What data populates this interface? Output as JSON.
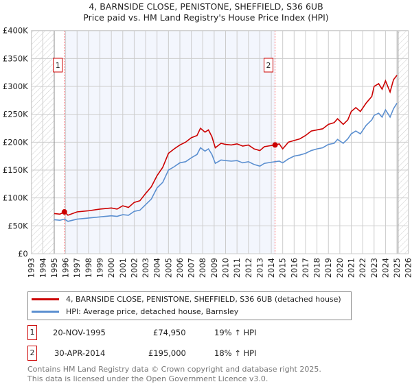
{
  "title_line1": "4, BARNSIDE CLOSE, PENISTONE, SHEFFIELD, S36 6UB",
  "title_line2": "Price paid vs. HM Land Registry's House Price Index (HPI)",
  "chart_data": {
    "type": "line",
    "xlim": [
      1993,
      2026
    ],
    "ylim": [
      0,
      400000
    ],
    "yticks": [
      {
        "v": 0,
        "label": "£0"
      },
      {
        "v": 50000,
        "label": "£50K"
      },
      {
        "v": 100000,
        "label": "£100K"
      },
      {
        "v": 150000,
        "label": "£150K"
      },
      {
        "v": 200000,
        "label": "£200K"
      },
      {
        "v": 250000,
        "label": "£250K"
      },
      {
        "v": 300000,
        "label": "£300K"
      },
      {
        "v": 350000,
        "label": "£350K"
      },
      {
        "v": 400000,
        "label": "£400K"
      }
    ],
    "xticks": [
      "1993",
      "1994",
      "1995",
      "1996",
      "1997",
      "1998",
      "1999",
      "2000",
      "2001",
      "2002",
      "2003",
      "2004",
      "2005",
      "2006",
      "2007",
      "2008",
      "2009",
      "2010",
      "2011",
      "2012",
      "2013",
      "2014",
      "2015",
      "2016",
      "2017",
      "2018",
      "2019",
      "2020",
      "2021",
      "2022",
      "2023",
      "2024",
      "2025",
      "2026"
    ],
    "hatched_ranges": [
      [
        1993,
        1995
      ],
      [
        2025.1,
        2026
      ]
    ],
    "shaded_range": [
      1995.89,
      2014.33
    ],
    "series": [
      {
        "name": "4, BARNSIDE CLOSE, PENISTONE, SHEFFIELD, S36 6UB (detached house)",
        "color": "#cc0000",
        "x": [
          1995,
          1995.5,
          1995.9,
          1996.2,
          1997,
          1998,
          1999,
          2000,
          2000.5,
          2001,
          2001.5,
          2002,
          2002.5,
          2003,
          2003.5,
          2004,
          2004.5,
          2005,
          2005.5,
          2006,
          2006.5,
          2007,
          2007.5,
          2007.8,
          2008.2,
          2008.5,
          2008.8,
          2009.1,
          2009.6,
          2010,
          2010.5,
          2011,
          2011.5,
          2012,
          2012.5,
          2013,
          2013.4,
          2014,
          2014.33,
          2014.7,
          2015,
          2015.5,
          2016,
          2016.5,
          2017,
          2017.5,
          2018,
          2018.5,
          2019,
          2019.5,
          2019.8,
          2020.3,
          2020.7,
          2021,
          2021.4,
          2021.8,
          2022.3,
          2022.8,
          2023,
          2023.4,
          2023.7,
          2024,
          2024.4,
          2024.7,
          2025
        ],
        "y": [
          72000,
          71000,
          74950,
          69000,
          75000,
          77000,
          80000,
          82000,
          80000,
          86000,
          83000,
          92000,
          95000,
          108000,
          120000,
          140000,
          155000,
          180000,
          188000,
          195000,
          200000,
          208000,
          212000,
          225000,
          218000,
          222000,
          210000,
          190000,
          198000,
          196000,
          195000,
          197000,
          193000,
          195000,
          188000,
          185000,
          192000,
          194000,
          195000,
          197000,
          188000,
          200000,
          203000,
          206000,
          212000,
          220000,
          222000,
          224000,
          232000,
          235000,
          242000,
          232000,
          240000,
          255000,
          262000,
          255000,
          270000,
          282000,
          300000,
          305000,
          295000,
          310000,
          290000,
          312000,
          320000
        ]
      },
      {
        "name": "HPI: Average price, detached house, Barnsley",
        "color": "#5b8fd0",
        "x": [
          1995,
          1995.5,
          1995.9,
          1996.2,
          1997,
          1998,
          1999,
          2000,
          2000.5,
          2001,
          2001.5,
          2002,
          2002.5,
          2003,
          2003.5,
          2004,
          2004.5,
          2005,
          2005.5,
          2006,
          2006.5,
          2007,
          2007.5,
          2007.8,
          2008.2,
          2008.5,
          2008.8,
          2009.1,
          2009.6,
          2010,
          2010.5,
          2011,
          2011.5,
          2012,
          2012.5,
          2013,
          2013.4,
          2014,
          2014.33,
          2014.7,
          2015,
          2015.5,
          2016,
          2016.5,
          2017,
          2017.5,
          2018,
          2018.5,
          2019,
          2019.5,
          2019.8,
          2020.3,
          2020.7,
          2021,
          2021.4,
          2021.8,
          2022.3,
          2022.8,
          2023,
          2023.4,
          2023.7,
          2024,
          2024.4,
          2024.7,
          2025
        ],
        "y": [
          61000,
          60000,
          62000,
          58000,
          62000,
          64000,
          66000,
          68000,
          67000,
          70000,
          69000,
          76000,
          78000,
          88000,
          98000,
          118000,
          128000,
          150000,
          156000,
          163000,
          165000,
          172000,
          178000,
          190000,
          184000,
          188000,
          178000,
          162000,
          168000,
          167000,
          166000,
          167000,
          163000,
          165000,
          160000,
          157000,
          162000,
          164000,
          165000,
          166000,
          163000,
          170000,
          175000,
          177000,
          180000,
          185000,
          188000,
          190000,
          196000,
          198000,
          205000,
          198000,
          206000,
          215000,
          220000,
          215000,
          230000,
          240000,
          248000,
          252000,
          245000,
          258000,
          245000,
          260000,
          270000
        ]
      }
    ],
    "markers": [
      {
        "id": "1",
        "x": 1995.89,
        "y": 74950
      },
      {
        "id": "2",
        "x": 2014.33,
        "y": 195000
      }
    ]
  },
  "legend": [
    "4, BARNSIDE CLOSE, PENISTONE, SHEFFIELD, S36 6UB (detached house)",
    "HPI: Average price, detached house, Barnsley"
  ],
  "transactions": [
    {
      "id": "1",
      "date": "20-NOV-1995",
      "price": "£74,950",
      "hpi": "19% ↑ HPI"
    },
    {
      "id": "2",
      "date": "30-APR-2014",
      "price": "£195,000",
      "hpi": "18% ↑ HPI"
    }
  ],
  "footer": [
    "Contains HM Land Registry data © Crown copyright and database right 2025.",
    "This data is licensed under the Open Government Licence v3.0."
  ]
}
